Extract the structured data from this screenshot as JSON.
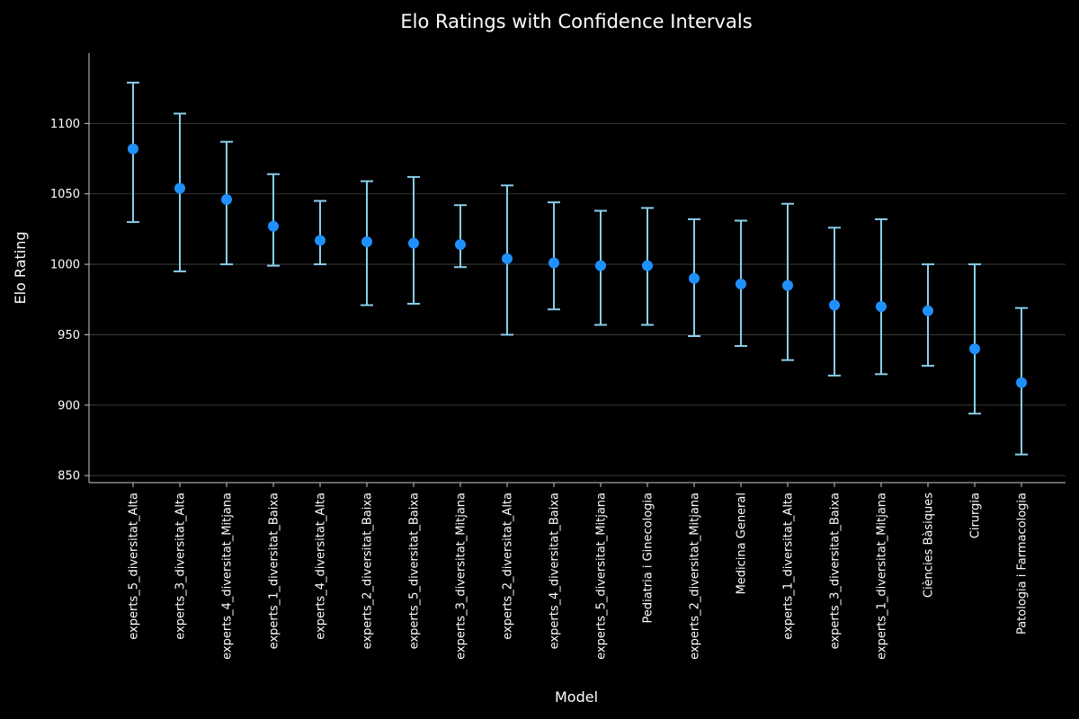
{
  "chart_data": {
    "type": "scatter",
    "title": "Elo Ratings with Confidence Intervals",
    "xlabel": "Model",
    "ylabel": "Elo Rating",
    "ylim": [
      845,
      1150
    ],
    "yticks": [
      850,
      900,
      950,
      1000,
      1050,
      1100
    ],
    "grid": "horizontal",
    "colors": {
      "point": "#1e90ff",
      "errorbar": "#87ceeb",
      "grid": "#444444",
      "axis": "#cccccc",
      "background": "#000000"
    },
    "categories": [
      "experts_5_diversitat_Alta",
      "experts_3_diversitat_Alta",
      "experts_4_diversitat_Mitjana",
      "experts_1_diversitat_Baixa",
      "experts_4_diversitat_Alta",
      "experts_2_diversitat_Baixa",
      "experts_5_diversitat_Baixa",
      "experts_3_diversitat_Mitjana",
      "experts_2_diversitat_Alta",
      "experts_4_diversitat_Baixa",
      "experts_5_diversitat_Mitjana",
      "Pediatria i Ginecologia",
      "experts_2_diversitat_Mitjana",
      "Medicina General",
      "experts_1_diversitat_Alta",
      "experts_3_diversitat_Baixa",
      "experts_1_diversitat_Mitjana",
      "Ciències Bàsiques",
      "Cirurgia",
      "Patologia i Farmacologia"
    ],
    "values": [
      1082,
      1054,
      1046,
      1027,
      1017,
      1016,
      1015,
      1014,
      1004,
      1001,
      999,
      999,
      990,
      986,
      985,
      971,
      970,
      967,
      940,
      916
    ],
    "ci_low": [
      1030,
      995,
      1000,
      999,
      1000,
      971,
      972,
      998,
      950,
      968,
      957,
      957,
      949,
      942,
      932,
      921,
      922,
      928,
      894,
      865
    ],
    "ci_high": [
      1129,
      1107,
      1087,
      1064,
      1045,
      1059,
      1062,
      1042,
      1056,
      1044,
      1038,
      1040,
      1032,
      1031,
      1043,
      1026,
      1032,
      1000,
      1000,
      969
    ]
  }
}
